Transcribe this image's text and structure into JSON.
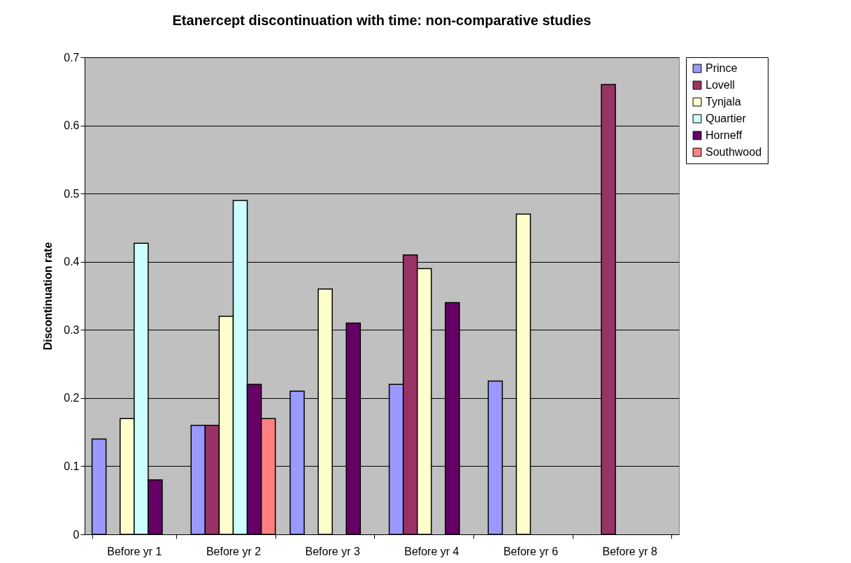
{
  "chart_data": {
    "type": "bar",
    "title": "Etanercept discontinuation with time: non-comparative studies",
    "ylabel": "Discontinuation rate",
    "categories": [
      "Before yr 1",
      "Before yr 2",
      "Before yr 3",
      "Before yr 4",
      "Before yr 6",
      "Before yr 8"
    ],
    "series": [
      {
        "name": "Prince",
        "color": "#9999ff",
        "values": [
          0.14,
          0.16,
          0.21,
          0.22,
          0.225,
          null
        ]
      },
      {
        "name": "Lovell",
        "color": "#993366",
        "values": [
          null,
          0.16,
          null,
          0.41,
          null,
          0.66
        ]
      },
      {
        "name": "Tynjala",
        "color": "#ffffcc",
        "values": [
          0.17,
          0.32,
          0.36,
          0.39,
          0.47,
          null
        ]
      },
      {
        "name": "Quartier",
        "color": "#ccffff",
        "values": [
          0.427,
          0.49,
          null,
          null,
          null,
          null
        ]
      },
      {
        "name": "Horneff",
        "color": "#660066",
        "values": [
          0.08,
          0.22,
          0.31,
          0.34,
          null,
          null
        ]
      },
      {
        "name": "Southwood",
        "color": "#ff8080",
        "values": [
          null,
          0.17,
          null,
          null,
          null,
          null
        ]
      }
    ],
    "ylim": [
      0,
      0.7
    ],
    "yticks": [
      0,
      0.1,
      0.2,
      0.3,
      0.4,
      0.5,
      0.6,
      0.7
    ],
    "grid": "y",
    "legend": "right"
  }
}
